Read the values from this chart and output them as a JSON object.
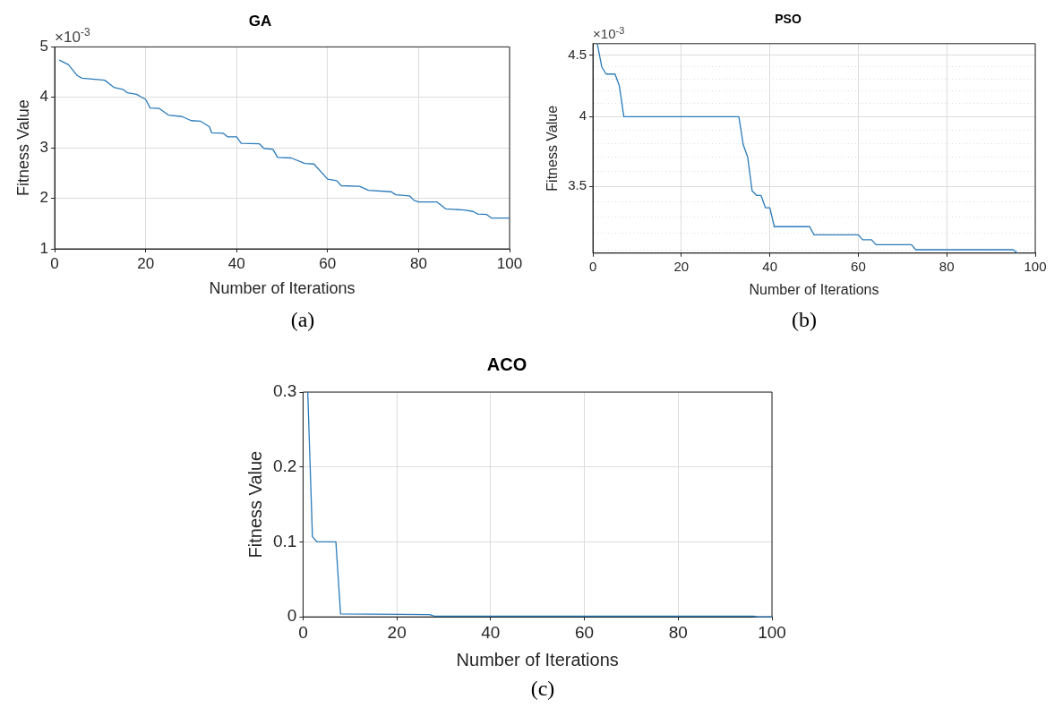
{
  "chart_data": [
    {
      "type": "line",
      "title": "GA",
      "xlabel": "Number of Iterations",
      "ylabel": "Fitness Value",
      "annotations": [
        "×10$^{-3}$",
        "(a)"
      ],
      "x": [
        1,
        3,
        5,
        6,
        10,
        11,
        13,
        15,
        16,
        18,
        19,
        20,
        21,
        23,
        25,
        28,
        30,
        32,
        34,
        34.5,
        37,
        38,
        40,
        41,
        45,
        46,
        48,
        49,
        52,
        55,
        57,
        60,
        62,
        63,
        67,
        69,
        74,
        75,
        78,
        79,
        80,
        84,
        86,
        90,
        92,
        93,
        95,
        96,
        100
      ],
      "series": [
        {
          "color": "#2b7bba",
          "values": [
            4.74,
            4.65,
            4.43,
            4.38,
            4.35,
            4.34,
            4.2,
            4.16,
            4.09,
            4.06,
            4.01,
            3.96,
            3.79,
            3.78,
            3.65,
            3.62,
            3.54,
            3.53,
            3.42,
            3.3,
            3.29,
            3.22,
            3.22,
            3.09,
            3.08,
            2.99,
            2.97,
            2.81,
            2.8,
            2.69,
            2.68,
            2.38,
            2.35,
            2.25,
            2.24,
            2.16,
            2.13,
            2.07,
            2.05,
            1.96,
            1.93,
            1.93,
            1.79,
            1.77,
            1.74,
            1.69,
            1.68,
            1.61,
            1.61
          ]
        }
      ],
      "xlim": [
        0,
        100
      ],
      "xticks": [
        0,
        20,
        40,
        60,
        80,
        100
      ],
      "ylim": [
        1,
        5
      ],
      "yticks": [
        1,
        2,
        3,
        4,
        5
      ],
      "grid": true,
      "marker": "none"
    },
    {
      "type": "line",
      "title": "PSO",
      "xlabel": "Number of Iterations",
      "ylabel": "Fitness Value",
      "annotations": [
        "×10$^{-3}$",
        "(b)"
      ],
      "x": [
        1,
        2,
        3,
        5,
        6,
        7,
        33,
        34,
        35,
        36,
        37,
        38,
        39,
        40,
        41,
        49,
        50,
        60,
        61,
        63,
        64,
        72,
        73,
        95,
        96
      ],
      "series": [
        {
          "color": "#2b7bba",
          "values": [
            4.6,
            4.4,
            4.34,
            4.34,
            4.24,
            4.0,
            4.0,
            3.79,
            3.7,
            3.47,
            3.44,
            3.44,
            3.36,
            3.36,
            3.24,
            3.24,
            3.19,
            3.19,
            3.16,
            3.16,
            3.13,
            3.13,
            3.1,
            3.1,
            3.08
          ]
        }
      ],
      "xlim": [
        0,
        100
      ],
      "xticks": [
        0,
        20,
        40,
        60,
        80,
        100
      ],
      "ylim": [
        3.08,
        4.6
      ],
      "log": "y",
      "yticks": [
        {
          "value": 3.1,
          "label": null
        },
        {
          "value": 3.2,
          "label": null
        },
        {
          "value": 3.3,
          "label": null
        },
        {
          "value": 3.4,
          "label": null
        },
        3.5,
        {
          "value": 3.6,
          "label": null
        },
        {
          "value": 3.7,
          "label": null
        },
        {
          "value": 3.8,
          "label": null
        },
        {
          "value": 3.9,
          "label": null
        },
        4,
        {
          "value": 4.1,
          "label": null
        },
        {
          "value": 4.2,
          "label": null
        },
        {
          "value": 4.3,
          "label": null
        },
        {
          "value": 4.4,
          "label": null
        },
        4.5
      ],
      "grid": true,
      "marker": "none"
    },
    {
      "type": "line",
      "title": "ACO",
      "xlabel": "Number of Iterations",
      "ylabel": "Fitness Value",
      "annotations": [
        "(c)"
      ],
      "x": [
        1,
        2,
        3,
        7,
        8,
        27,
        28,
        96,
        97,
        100
      ],
      "series": [
        {
          "color": "#2b7bba",
          "values": [
            0.3,
            0.107,
            0.1,
            0.1,
            0.004,
            0.003,
            0.001,
            0.001,
            0,
            0
          ]
        }
      ],
      "xlim": [
        0,
        100
      ],
      "xticks": [
        0,
        20,
        40,
        60,
        80,
        100
      ],
      "ylim": [
        0,
        0.3
      ],
      "yticks": [
        0,
        0.1,
        0.2,
        0.3
      ],
      "grid": true,
      "marker": "none"
    }
  ]
}
